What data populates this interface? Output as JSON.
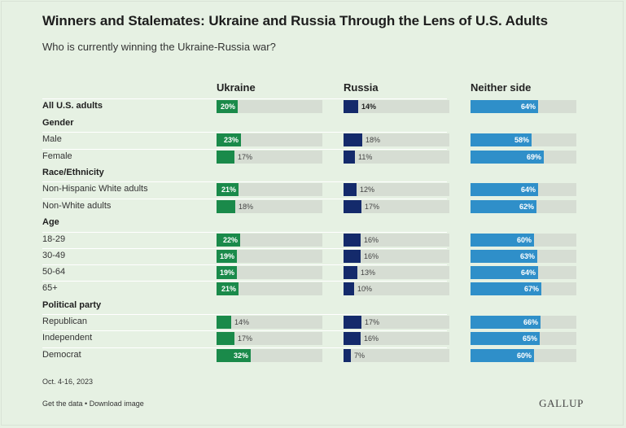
{
  "title": "Winners and Stalemates: Ukraine and Russia Through the Lens of U.S. Adults",
  "subtitle": "Who is currently winning the Ukraine-Russia war?",
  "footer": {
    "date": "Oct. 4-16, 2023",
    "get_data": "Get the data",
    "separator": " • ",
    "download": "Download image",
    "logo": "GALLUP"
  },
  "colors": {
    "ukraine": "#1a8a4a",
    "russia": "#142a6b",
    "neither": "#2f8fc9",
    "track": "#d6ddd3",
    "background": "#e6f1e3"
  },
  "chart_data": {
    "type": "bar",
    "orientation": "horizontal",
    "series": [
      {
        "name": "Ukraine"
      },
      {
        "name": "Russia"
      },
      {
        "name": "Neither side"
      }
    ],
    "xlim": [
      0,
      100
    ],
    "rows": [
      {
        "kind": "row",
        "label": "All U.S. adults",
        "bold": true,
        "values": [
          20,
          14,
          64
        ]
      },
      {
        "kind": "section",
        "label": "Gender"
      },
      {
        "kind": "row",
        "label": "Male",
        "values": [
          23,
          18,
          58
        ]
      },
      {
        "kind": "row",
        "label": "Female",
        "values": [
          17,
          11,
          69
        ]
      },
      {
        "kind": "section",
        "label": "Race/Ethnicity"
      },
      {
        "kind": "row",
        "label": "Non-Hispanic White adults",
        "values": [
          21,
          12,
          64
        ]
      },
      {
        "kind": "row",
        "label": "Non-White adults",
        "values": [
          18,
          17,
          62
        ]
      },
      {
        "kind": "section",
        "label": "Age"
      },
      {
        "kind": "row",
        "label": "18-29",
        "values": [
          22,
          16,
          60
        ]
      },
      {
        "kind": "row",
        "label": "30-49",
        "values": [
          19,
          16,
          63
        ]
      },
      {
        "kind": "row",
        "label": "50-64",
        "values": [
          19,
          13,
          64
        ]
      },
      {
        "kind": "row",
        "label": "65+",
        "values": [
          21,
          10,
          67
        ]
      },
      {
        "kind": "section",
        "label": "Political party"
      },
      {
        "kind": "row",
        "label": "Republican",
        "values": [
          14,
          17,
          66
        ]
      },
      {
        "kind": "row",
        "label": "Independent",
        "values": [
          17,
          16,
          65
        ]
      },
      {
        "kind": "row",
        "label": "Democrat",
        "values": [
          32,
          7,
          60
        ]
      }
    ]
  }
}
